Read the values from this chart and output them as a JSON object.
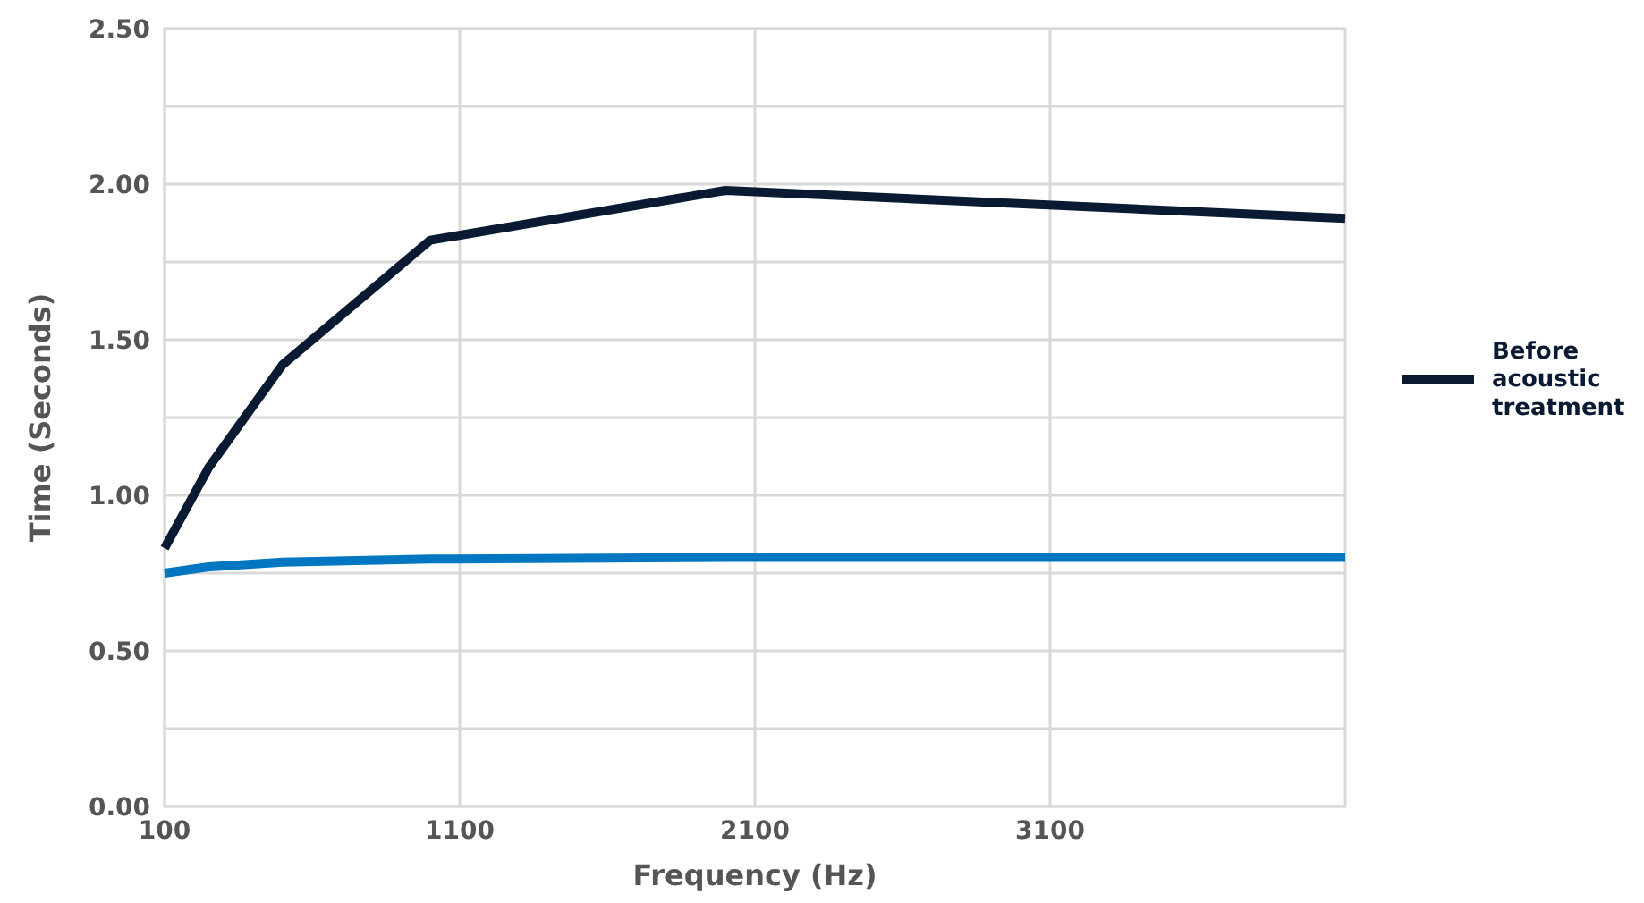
{
  "chart_data": {
    "type": "line",
    "xlabel": "Frequency (Hz)",
    "ylabel": "Time (Seconds)",
    "x": [
      100,
      250,
      500,
      1000,
      2000,
      4100
    ],
    "series": [
      {
        "name": "Before acoustic treatment",
        "color": "#0b1a33",
        "values": [
          0.83,
          1.09,
          1.42,
          1.82,
          1.98,
          1.89
        ]
      },
      {
        "color": "#0077c0",
        "values": [
          0.75,
          0.77,
          0.785,
          0.795,
          0.8,
          0.8
        ]
      }
    ],
    "xlim": [
      100,
      4100
    ],
    "xticks": [
      100,
      1100,
      2100,
      3100
    ],
    "ylim": [
      0,
      2.5
    ],
    "yticks": [
      {
        "value": 0,
        "label": "0.00"
      },
      {
        "value": 0.25,
        "label": null
      },
      {
        "value": 0.5,
        "label": "0.50"
      },
      {
        "value": 0.75,
        "label": null
      },
      {
        "value": 1,
        "label": "1.00"
      },
      {
        "value": 1.25,
        "label": null
      },
      {
        "value": 1.5,
        "label": "1.50"
      },
      {
        "value": 1.75,
        "label": null
      },
      {
        "value": 2,
        "label": "2.00"
      },
      {
        "value": 2.25,
        "label": null
      },
      {
        "value": 2.5,
        "label": "2.50"
      }
    ],
    "grid": true,
    "legend": "right",
    "line_style": "solid"
  }
}
